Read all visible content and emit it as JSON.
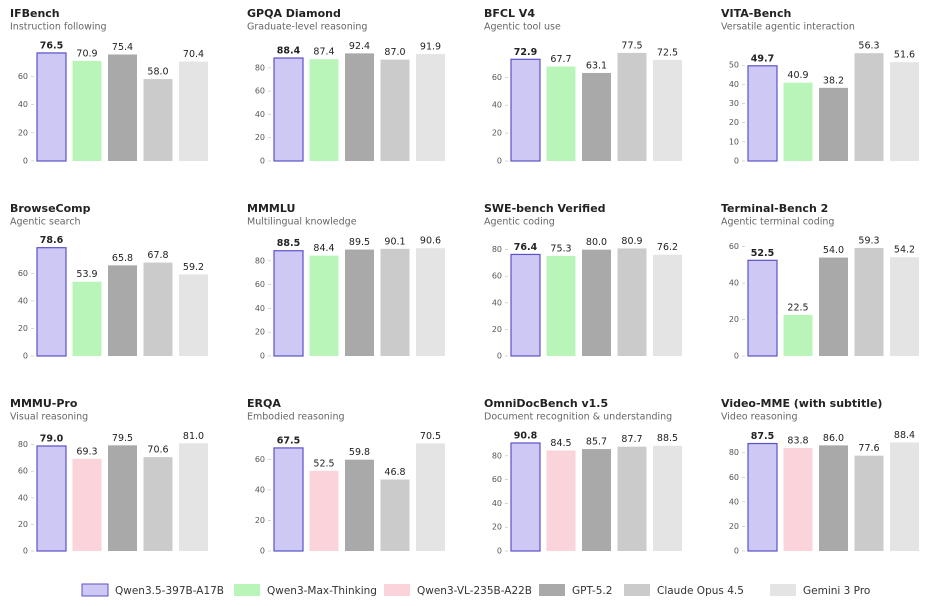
{
  "chart_data": [
    {
      "type": "bar",
      "title": "IFBench",
      "subtitle": "Instruction following",
      "ylim": [
        0,
        80
      ],
      "yticks": [
        0,
        20,
        40,
        60
      ],
      "series": [
        {
          "name": "Qwen3.5-397B-A17B",
          "values": [
            76.5
          ],
          "value_labels": [
            "76.5"
          ]
        },
        {
          "name": "Qwen3-Max-Thinking",
          "values": [
            70.9
          ],
          "value_labels": [
            "70.9"
          ]
        },
        {
          "name": "GPT-5.2",
          "values": [
            75.4
          ],
          "value_labels": [
            "75.4"
          ]
        },
        {
          "name": "Claude Opus 4.5",
          "values": [
            58.0
          ],
          "value_labels": [
            "58.0"
          ]
        },
        {
          "name": "Gemini 3 Pro",
          "values": [
            70.4
          ],
          "value_labels": [
            "70.4"
          ]
        }
      ]
    },
    {
      "type": "bar",
      "title": "GPQA Diamond",
      "subtitle": "Graduate-level reasoning",
      "ylim": [
        0,
        97
      ],
      "yticks": [
        0,
        20,
        40,
        60,
        80
      ],
      "series": [
        {
          "name": "Qwen3.5-397B-A17B",
          "values": [
            88.4
          ],
          "value_labels": [
            "88.4"
          ]
        },
        {
          "name": "Qwen3-Max-Thinking",
          "values": [
            87.4
          ],
          "value_labels": [
            "87.4"
          ]
        },
        {
          "name": "GPT-5.2",
          "values": [
            92.4
          ],
          "value_labels": [
            "92.4"
          ]
        },
        {
          "name": "Claude Opus 4.5",
          "values": [
            87.0
          ],
          "value_labels": [
            "87.0"
          ]
        },
        {
          "name": "Gemini 3 Pro",
          "values": [
            91.9
          ],
          "value_labels": [
            "91.9"
          ]
        }
      ]
    },
    {
      "type": "bar",
      "title": "BFCL V4",
      "subtitle": "Agentic tool use",
      "ylim": [
        0,
        81
      ],
      "yticks": [
        0,
        20,
        40,
        60
      ],
      "series": [
        {
          "name": "Qwen3.5-397B-A17B",
          "values": [
            72.9
          ],
          "value_labels": [
            "72.9"
          ]
        },
        {
          "name": "Qwen3-Max-Thinking",
          "values": [
            67.7
          ],
          "value_labels": [
            "67.7"
          ]
        },
        {
          "name": "GPT-5.2",
          "values": [
            63.1
          ],
          "value_labels": [
            "63.1"
          ]
        },
        {
          "name": "Claude Opus 4.5",
          "values": [
            77.5
          ],
          "value_labels": [
            "77.5"
          ]
        },
        {
          "name": "Gemini 3 Pro",
          "values": [
            72.5
          ],
          "value_labels": [
            "72.5"
          ]
        }
      ]
    },
    {
      "type": "bar",
      "title": "VITA-Bench",
      "subtitle": "Versatile agentic interaction",
      "ylim": [
        0,
        59
      ],
      "yticks": [
        0,
        10,
        20,
        30,
        40,
        50
      ],
      "series": [
        {
          "name": "Qwen3.5-397B-A17B",
          "values": [
            49.7
          ],
          "value_labels": [
            "49.7"
          ]
        },
        {
          "name": "Qwen3-Max-Thinking",
          "values": [
            40.9
          ],
          "value_labels": [
            "40.9"
          ]
        },
        {
          "name": "GPT-5.2",
          "values": [
            38.2
          ],
          "value_labels": [
            "38.2"
          ]
        },
        {
          "name": "Claude Opus 4.5",
          "values": [
            56.3
          ],
          "value_labels": [
            "56.3"
          ]
        },
        {
          "name": "Gemini 3 Pro",
          "values": [
            51.6
          ],
          "value_labels": [
            "51.6"
          ]
        }
      ]
    },
    {
      "type": "bar",
      "title": "BrowseComp",
      "subtitle": "Agentic search",
      "ylim": [
        0,
        82
      ],
      "yticks": [
        0,
        20,
        40,
        60
      ],
      "series": [
        {
          "name": "Qwen3.5-397B-A17B",
          "values": [
            78.6
          ],
          "value_labels": [
            "78.6"
          ]
        },
        {
          "name": "Qwen3-Max-Thinking",
          "values": [
            53.9
          ],
          "value_labels": [
            "53.9"
          ]
        },
        {
          "name": "GPT-5.2",
          "values": [
            65.8
          ],
          "value_labels": [
            "65.8"
          ]
        },
        {
          "name": "Claude Opus 4.5",
          "values": [
            67.8
          ],
          "value_labels": [
            "67.8"
          ]
        },
        {
          "name": "Gemini 3 Pro",
          "values": [
            59.2
          ],
          "value_labels": [
            "59.2"
          ]
        }
      ]
    },
    {
      "type": "bar",
      "title": "MMMLU",
      "subtitle": "Multilingual knowledge",
      "ylim": [
        0,
        95
      ],
      "yticks": [
        0,
        20,
        40,
        60,
        80
      ],
      "series": [
        {
          "name": "Qwen3.5-397B-A17B",
          "values": [
            88.5
          ],
          "value_labels": [
            "88.5"
          ]
        },
        {
          "name": "Qwen3-Max-Thinking",
          "values": [
            84.4
          ],
          "value_labels": [
            "84.4"
          ]
        },
        {
          "name": "GPT-5.2",
          "values": [
            89.5
          ],
          "value_labels": [
            "89.5"
          ]
        },
        {
          "name": "Claude Opus 4.5",
          "values": [
            90.1
          ],
          "value_labels": [
            "90.1"
          ]
        },
        {
          "name": "Gemini 3 Pro",
          "values": [
            90.6
          ],
          "value_labels": [
            "90.6"
          ]
        }
      ]
    },
    {
      "type": "bar",
      "title": "SWE-bench Verified",
      "subtitle": "Agentic coding",
      "ylim": [
        0,
        85
      ],
      "yticks": [
        0,
        20,
        40,
        60,
        80
      ],
      "series": [
        {
          "name": "Qwen3.5-397B-A17B",
          "values": [
            76.4
          ],
          "value_labels": [
            "76.4"
          ]
        },
        {
          "name": "Qwen3-Max-Thinking",
          "values": [
            75.3
          ],
          "value_labels": [
            "75.3"
          ]
        },
        {
          "name": "GPT-5.2",
          "values": [
            80.0
          ],
          "value_labels": [
            "80.0"
          ]
        },
        {
          "name": "Claude Opus 4.5",
          "values": [
            80.9
          ],
          "value_labels": [
            "80.9"
          ]
        },
        {
          "name": "Gemini 3 Pro",
          "values": [
            76.2
          ],
          "value_labels": [
            "76.2"
          ]
        }
      ]
    },
    {
      "type": "bar",
      "title": "Terminal-Bench 2",
      "subtitle": "Agentic terminal coding",
      "ylim": [
        0,
        62
      ],
      "yticks": [
        0,
        20,
        40,
        60
      ],
      "series": [
        {
          "name": "Qwen3.5-397B-A17B",
          "values": [
            52.5
          ],
          "value_labels": [
            "52.5"
          ]
        },
        {
          "name": "Qwen3-Max-Thinking",
          "values": [
            22.5
          ],
          "value_labels": [
            "22.5"
          ]
        },
        {
          "name": "GPT-5.2",
          "values": [
            54.0
          ],
          "value_labels": [
            "54.0"
          ]
        },
        {
          "name": "Claude Opus 4.5",
          "values": [
            59.3
          ],
          "value_labels": [
            "59.3"
          ]
        },
        {
          "name": "Gemini 3 Pro",
          "values": [
            54.2
          ],
          "value_labels": [
            "54.2"
          ]
        }
      ]
    },
    {
      "type": "bar",
      "title": "MMMU-Pro",
      "subtitle": "Visual reasoning",
      "ylim": [
        0,
        85
      ],
      "yticks": [
        0,
        20,
        40,
        60,
        80
      ],
      "series": [
        {
          "name": "Qwen3.5-397B-A17B",
          "values": [
            79.0
          ],
          "value_labels": [
            "79.0"
          ]
        },
        {
          "name": "Qwen3-VL-235B-A22B",
          "values": [
            69.3
          ],
          "value_labels": [
            "69.3"
          ]
        },
        {
          "name": "GPT-5.2",
          "values": [
            79.5
          ],
          "value_labels": [
            "79.5"
          ]
        },
        {
          "name": "Claude Opus 4.5",
          "values": [
            70.6
          ],
          "value_labels": [
            "70.6"
          ]
        },
        {
          "name": "Gemini 3 Pro",
          "values": [
            81.0
          ],
          "value_labels": [
            "81.0"
          ]
        }
      ]
    },
    {
      "type": "bar",
      "title": "ERQA",
      "subtitle": "Embodied reasoning",
      "ylim": [
        0,
        74
      ],
      "yticks": [
        0,
        20,
        40,
        60
      ],
      "series": [
        {
          "name": "Qwen3.5-397B-A17B",
          "values": [
            67.5
          ],
          "value_labels": [
            "67.5"
          ]
        },
        {
          "name": "Qwen3-VL-235B-A22B",
          "values": [
            52.5
          ],
          "value_labels": [
            "52.5"
          ]
        },
        {
          "name": "GPT-5.2",
          "values": [
            59.8
          ],
          "value_labels": [
            "59.8"
          ]
        },
        {
          "name": "Claude Opus 4.5",
          "values": [
            46.8
          ],
          "value_labels": [
            "46.8"
          ]
        },
        {
          "name": "Gemini 3 Pro",
          "values": [
            70.5
          ],
          "value_labels": [
            "70.5"
          ]
        }
      ]
    },
    {
      "type": "bar",
      "title": "OmniDocBench v1.5",
      "subtitle": "Document recognition & understanding",
      "ylim": [
        0,
        95
      ],
      "yticks": [
        0,
        20,
        40,
        60,
        80
      ],
      "series": [
        {
          "name": "Qwen3.5-397B-A17B",
          "values": [
            90.8
          ],
          "value_labels": [
            "90.8"
          ]
        },
        {
          "name": "Qwen3-VL-235B-A22B",
          "values": [
            84.5
          ],
          "value_labels": [
            "84.5"
          ]
        },
        {
          "name": "GPT-5.2",
          "values": [
            85.7
          ],
          "value_labels": [
            "85.7"
          ]
        },
        {
          "name": "Claude Opus 4.5",
          "values": [
            87.7
          ],
          "value_labels": [
            "87.7"
          ]
        },
        {
          "name": "Gemini 3 Pro",
          "values": [
            88.5
          ],
          "value_labels": [
            "88.5"
          ]
        }
      ]
    },
    {
      "type": "bar",
      "title": "Video-MME (with subtitle)",
      "subtitle": "Video reasoning",
      "ylim": [
        0,
        92
      ],
      "yticks": [
        0,
        20,
        40,
        60,
        80
      ],
      "series": [
        {
          "name": "Qwen3.5-397B-A17B",
          "values": [
            87.5
          ],
          "value_labels": [
            "87.5"
          ]
        },
        {
          "name": "Qwen3-VL-235B-A22B",
          "values": [
            83.8
          ],
          "value_labels": [
            "83.8"
          ]
        },
        {
          "name": "GPT-5.2",
          "values": [
            86.0
          ],
          "value_labels": [
            "86.0"
          ]
        },
        {
          "name": "Claude Opus 4.5",
          "values": [
            77.6
          ],
          "value_labels": [
            "77.6"
          ]
        },
        {
          "name": "Gemini 3 Pro",
          "values": [
            88.4
          ],
          "value_labels": [
            "88.4"
          ]
        }
      ]
    }
  ],
  "legend": {
    "entries": [
      {
        "name": "Qwen3.5-397B-A17B",
        "color": "#cdc9f4",
        "border": "#5a52c8"
      },
      {
        "name": "Qwen3-Max-Thinking",
        "color": "#b9f5b9"
      },
      {
        "name": "Qwen3-VL-235B-A22B",
        "color": "#fbd3da"
      },
      {
        "name": "GPT-5.2",
        "color": "#a9a9a9"
      },
      {
        "name": "Claude Opus 4.5",
        "color": "#cbcbcb"
      },
      {
        "name": "Gemini 3 Pro",
        "color": "#e4e4e4"
      }
    ]
  }
}
